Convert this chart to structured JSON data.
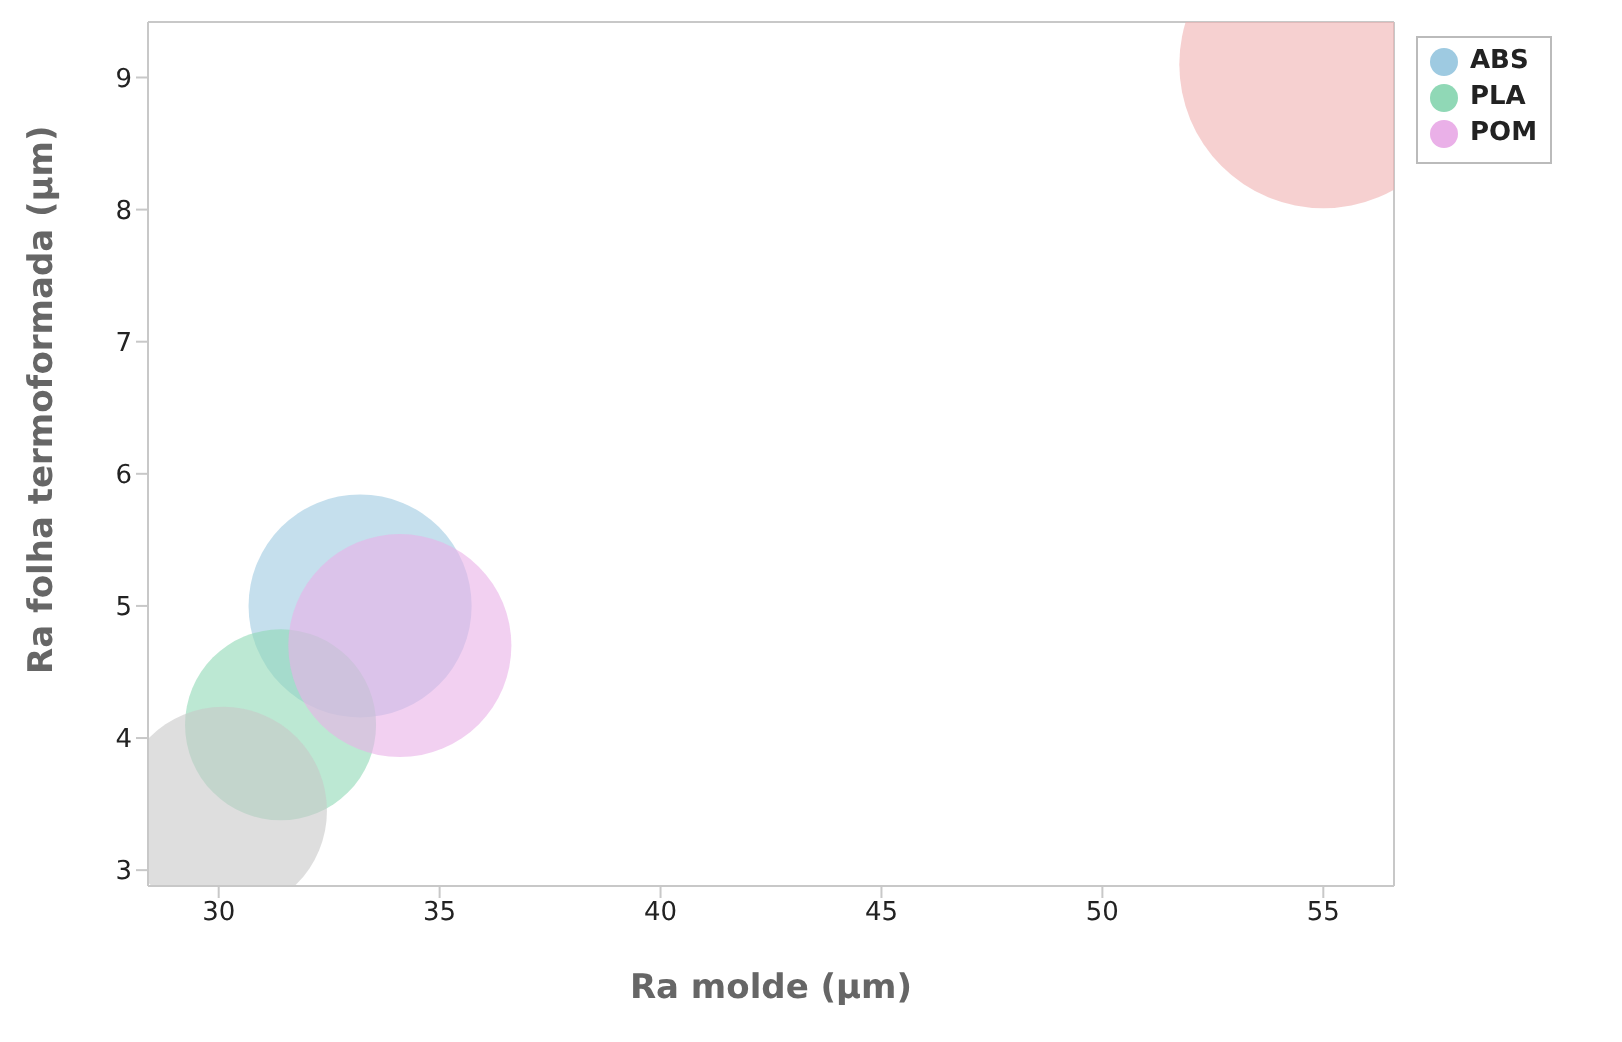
{
  "chart_data": {
    "type": "bubble",
    "xlabel": "Ra molde (µm)",
    "ylabel": "Ra folha termoformada (µm)",
    "xlim": [
      28.4,
      56.6
    ],
    "xticks": [
      30,
      35,
      40,
      45,
      50,
      55
    ],
    "ylim": [
      2.88,
      9.42
    ],
    "yticks": [
      3,
      4,
      5,
      6,
      7,
      8,
      9
    ],
    "grid": false,
    "legend": "top right",
    "series": [
      {
        "name": "ABS",
        "color": "#9ecae1",
        "x": [
          33.2
        ],
        "values": [
          5.0
        ],
        "sizes": [
          0.6
        ]
      },
      {
        "color": "#f0b0b0",
        "x": [
          55
        ],
        "values": [
          9.1
        ],
        "sizes": [
          1
        ]
      },
      {
        "name": "PLA",
        "color": "#90d8b6",
        "x": [
          31.4
        ],
        "values": [
          4.1
        ],
        "sizes": [
          0.44
        ]
      },
      {
        "name": "POM",
        "color": "#eab0e8",
        "x": [
          34.1
        ],
        "values": [
          4.7
        ],
        "sizes": [
          0.6
        ]
      },
      {
        "color": "#c8c8c8",
        "x": [
          30.1
        ],
        "values": [
          3.45
        ],
        "sizes": [
          0.52
        ]
      }
    ]
  }
}
